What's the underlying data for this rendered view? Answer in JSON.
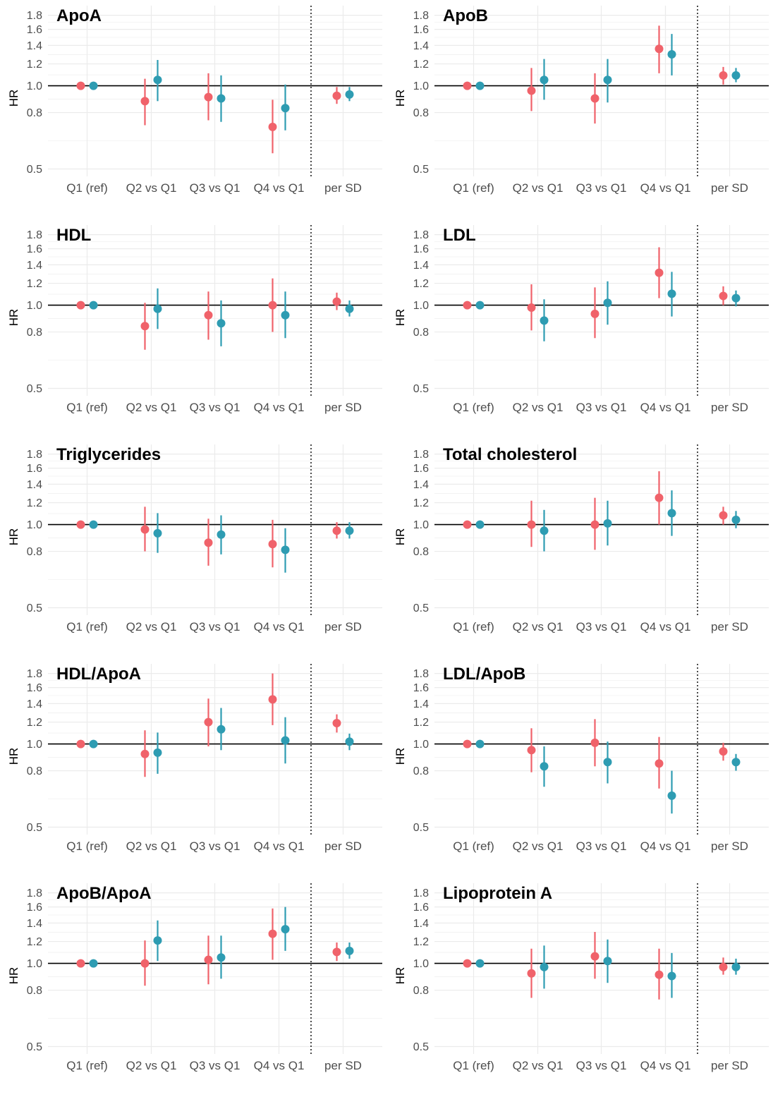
{
  "colors": {
    "group1": "#F0626A",
    "group2": "#2E9CB2",
    "gridline": "#EBEBEB",
    "refline": "#000000"
  },
  "chart_data": [
    {
      "type": "forest",
      "title": "ApoA",
      "ylabel": "HR",
      "yscale": "log",
      "ylim": [
        0.47,
        1.95
      ],
      "yticks": [
        "0.5",
        "0.8",
        "1.0",
        "1.2",
        "1.4",
        "1.6",
        "1.8"
      ],
      "categories": [
        "Q1 (ref)",
        "Q2 vs Q1",
        "Q3 vs Q1",
        "Q4 vs Q1",
        "per SD"
      ],
      "series": [
        {
          "color": "#F0626A",
          "hr": [
            1.0,
            0.88,
            0.91,
            0.71,
            0.92
          ],
          "lower": [
            1.0,
            0.72,
            0.75,
            0.57,
            0.86
          ],
          "upper": [
            1.0,
            1.06,
            1.11,
            0.89,
            0.99
          ]
        },
        {
          "color": "#2E9CB2",
          "hr": [
            1.0,
            1.05,
            0.9,
            0.83,
            0.93
          ],
          "lower": [
            1.0,
            0.88,
            0.74,
            0.69,
            0.88
          ],
          "upper": [
            1.0,
            1.24,
            1.09,
            1.01,
            0.99
          ]
        }
      ]
    },
    {
      "type": "forest",
      "title": "ApoB",
      "ylabel": "HR",
      "yscale": "log",
      "ylim": [
        0.47,
        1.95
      ],
      "yticks": [
        "0.5",
        "0.8",
        "1.0",
        "1.2",
        "1.4",
        "1.6",
        "1.8"
      ],
      "categories": [
        "Q1 (ref)",
        "Q2 vs Q1",
        "Q3 vs Q1",
        "Q4 vs Q1",
        "per SD"
      ],
      "series": [
        {
          "color": "#F0626A",
          "hr": [
            1.0,
            0.96,
            0.9,
            1.36,
            1.09
          ],
          "lower": [
            1.0,
            0.81,
            0.73,
            1.11,
            1.01
          ],
          "upper": [
            1.0,
            1.16,
            1.11,
            1.65,
            1.17
          ]
        },
        {
          "color": "#2E9CB2",
          "hr": [
            1.0,
            1.05,
            1.05,
            1.3,
            1.09
          ],
          "lower": [
            1.0,
            0.89,
            0.87,
            1.09,
            1.03
          ],
          "upper": [
            1.0,
            1.25,
            1.25,
            1.54,
            1.16
          ]
        }
      ]
    },
    {
      "type": "forest",
      "title": "HDL",
      "ylabel": "HR",
      "yscale": "log",
      "ylim": [
        0.47,
        1.95
      ],
      "yticks": [
        "0.5",
        "0.8",
        "1.0",
        "1.2",
        "1.4",
        "1.6",
        "1.8"
      ],
      "categories": [
        "Q1 (ref)",
        "Q2 vs Q1",
        "Q3 vs Q1",
        "Q4 vs Q1",
        "per SD"
      ],
      "series": [
        {
          "color": "#F0626A",
          "hr": [
            1.0,
            0.84,
            0.92,
            1.0,
            1.03
          ],
          "lower": [
            1.0,
            0.69,
            0.75,
            0.8,
            0.96
          ],
          "upper": [
            1.0,
            1.02,
            1.12,
            1.25,
            1.11
          ]
        },
        {
          "color": "#2E9CB2",
          "hr": [
            1.0,
            0.97,
            0.86,
            0.92,
            0.97
          ],
          "lower": [
            1.0,
            0.82,
            0.71,
            0.76,
            0.91
          ],
          "upper": [
            1.0,
            1.15,
            1.04,
            1.12,
            1.04
          ]
        }
      ]
    },
    {
      "type": "forest",
      "title": "LDL",
      "ylabel": "HR",
      "yscale": "log",
      "ylim": [
        0.47,
        1.95
      ],
      "yticks": [
        "0.5",
        "0.8",
        "1.0",
        "1.2",
        "1.4",
        "1.6",
        "1.8"
      ],
      "categories": [
        "Q1 (ref)",
        "Q2 vs Q1",
        "Q3 vs Q1",
        "Q4 vs Q1",
        "per SD"
      ],
      "series": [
        {
          "color": "#F0626A",
          "hr": [
            1.0,
            0.98,
            0.93,
            1.31,
            1.08
          ],
          "lower": [
            1.0,
            0.81,
            0.76,
            1.06,
            1.0
          ],
          "upper": [
            1.0,
            1.19,
            1.16,
            1.62,
            1.17
          ]
        },
        {
          "color": "#2E9CB2",
          "hr": [
            1.0,
            0.88,
            1.02,
            1.1,
            1.06
          ],
          "lower": [
            1.0,
            0.74,
            0.85,
            0.91,
            0.99
          ],
          "upper": [
            1.0,
            1.05,
            1.22,
            1.32,
            1.13
          ]
        }
      ]
    },
    {
      "type": "forest",
      "title": "Triglycerides",
      "ylabel": "HR",
      "yscale": "log",
      "ylim": [
        0.47,
        1.95
      ],
      "yticks": [
        "0.5",
        "0.8",
        "1.0",
        "1.2",
        "1.4",
        "1.6",
        "1.8"
      ],
      "categories": [
        "Q1 (ref)",
        "Q2 vs Q1",
        "Q3 vs Q1",
        "Q4 vs Q1",
        "per SD"
      ],
      "series": [
        {
          "color": "#F0626A",
          "hr": [
            1.0,
            0.96,
            0.86,
            0.85,
            0.95
          ],
          "lower": [
            1.0,
            0.8,
            0.71,
            0.7,
            0.89
          ],
          "upper": [
            1.0,
            1.16,
            1.05,
            1.04,
            1.02
          ]
        },
        {
          "color": "#2E9CB2",
          "hr": [
            1.0,
            0.93,
            0.92,
            0.81,
            0.95
          ],
          "lower": [
            1.0,
            0.79,
            0.78,
            0.67,
            0.89
          ],
          "upper": [
            1.0,
            1.1,
            1.08,
            0.97,
            1.02
          ]
        }
      ]
    },
    {
      "type": "forest",
      "title": "Total cholesterol",
      "ylabel": "HR",
      "yscale": "log",
      "ylim": [
        0.47,
        1.95
      ],
      "yticks": [
        "0.5",
        "0.8",
        "1.0",
        "1.2",
        "1.4",
        "1.6",
        "1.8"
      ],
      "categories": [
        "Q1 (ref)",
        "Q2 vs Q1",
        "Q3 vs Q1",
        "Q4 vs Q1",
        "per SD"
      ],
      "series": [
        {
          "color": "#F0626A",
          "hr": [
            1.0,
            1.0,
            1.0,
            1.25,
            1.08
          ],
          "lower": [
            1.0,
            0.83,
            0.81,
            1.0,
            1.0
          ],
          "upper": [
            1.0,
            1.22,
            1.25,
            1.56,
            1.16
          ]
        },
        {
          "color": "#2E9CB2",
          "hr": [
            1.0,
            0.95,
            1.01,
            1.1,
            1.04
          ],
          "lower": [
            1.0,
            0.8,
            0.84,
            0.91,
            0.97
          ],
          "upper": [
            1.0,
            1.13,
            1.22,
            1.33,
            1.12
          ]
        }
      ]
    },
    {
      "type": "forest",
      "title": "HDL/ApoA",
      "ylabel": "HR",
      "yscale": "log",
      "ylim": [
        0.47,
        1.95
      ],
      "yticks": [
        "0.5",
        "0.8",
        "1.0",
        "1.2",
        "1.4",
        "1.6",
        "1.8"
      ],
      "categories": [
        "Q1 (ref)",
        "Q2 vs Q1",
        "Q3 vs Q1",
        "Q4 vs Q1",
        "per SD"
      ],
      "series": [
        {
          "color": "#F0626A",
          "hr": [
            1.0,
            0.92,
            1.2,
            1.45,
            1.19
          ],
          "lower": [
            1.0,
            0.76,
            0.98,
            1.17,
            1.1
          ],
          "upper": [
            1.0,
            1.12,
            1.46,
            1.8,
            1.28
          ]
        },
        {
          "color": "#2E9CB2",
          "hr": [
            1.0,
            0.93,
            1.13,
            1.03,
            1.02
          ],
          "lower": [
            1.0,
            0.78,
            0.95,
            0.85,
            0.95
          ],
          "upper": [
            1.0,
            1.1,
            1.35,
            1.25,
            1.09
          ]
        }
      ]
    },
    {
      "type": "forest",
      "title": "LDL/ApoB",
      "ylabel": "HR",
      "yscale": "log",
      "ylim": [
        0.47,
        1.95
      ],
      "yticks": [
        "0.5",
        "0.8",
        "1.0",
        "1.2",
        "1.4",
        "1.6",
        "1.8"
      ],
      "categories": [
        "Q1 (ref)",
        "Q2 vs Q1",
        "Q3 vs Q1",
        "Q4 vs Q1",
        "per SD"
      ],
      "series": [
        {
          "color": "#F0626A",
          "hr": [
            1.0,
            0.95,
            1.01,
            0.85,
            0.94
          ],
          "lower": [
            1.0,
            0.79,
            0.83,
            0.69,
            0.87
          ],
          "upper": [
            1.0,
            1.14,
            1.23,
            1.06,
            1.01
          ]
        },
        {
          "color": "#2E9CB2",
          "hr": [
            1.0,
            0.83,
            0.86,
            0.65,
            0.86
          ],
          "lower": [
            1.0,
            0.7,
            0.72,
            0.56,
            0.8
          ],
          "upper": [
            1.0,
            0.98,
            1.02,
            0.8,
            0.92
          ]
        }
      ]
    },
    {
      "type": "forest",
      "title": "ApoB/ApoA",
      "ylabel": "HR",
      "yscale": "log",
      "ylim": [
        0.47,
        1.95
      ],
      "yticks": [
        "0.5",
        "0.8",
        "1.0",
        "1.2",
        "1.4",
        "1.6",
        "1.8"
      ],
      "categories": [
        "Q1 (ref)",
        "Q2 vs Q1",
        "Q3 vs Q1",
        "Q4 vs Q1",
        "per SD"
      ],
      "series": [
        {
          "color": "#F0626A",
          "hr": [
            1.0,
            1.0,
            1.03,
            1.28,
            1.1
          ],
          "lower": [
            1.0,
            0.83,
            0.84,
            1.03,
            1.02
          ],
          "upper": [
            1.0,
            1.21,
            1.26,
            1.58,
            1.19
          ]
        },
        {
          "color": "#2E9CB2",
          "hr": [
            1.0,
            1.21,
            1.05,
            1.33,
            1.11
          ],
          "lower": [
            1.0,
            1.02,
            0.88,
            1.11,
            1.04
          ],
          "upper": [
            1.0,
            1.43,
            1.26,
            1.6,
            1.19
          ]
        }
      ]
    },
    {
      "type": "forest",
      "title": "Lipoprotein A",
      "ylabel": "HR",
      "yscale": "log",
      "ylim": [
        0.47,
        1.95
      ],
      "yticks": [
        "0.5",
        "0.8",
        "1.0",
        "1.2",
        "1.4",
        "1.6",
        "1.8"
      ],
      "categories": [
        "Q1 (ref)",
        "Q2 vs Q1",
        "Q3 vs Q1",
        "Q4 vs Q1",
        "per SD"
      ],
      "series": [
        {
          "color": "#F0626A",
          "hr": [
            1.0,
            0.92,
            1.06,
            0.91,
            0.97
          ],
          "lower": [
            1.0,
            0.75,
            0.88,
            0.74,
            0.91
          ],
          "upper": [
            1.0,
            1.13,
            1.3,
            1.13,
            1.05
          ]
        },
        {
          "color": "#2E9CB2",
          "hr": [
            1.0,
            0.97,
            1.02,
            0.9,
            0.97
          ],
          "lower": [
            1.0,
            0.81,
            0.85,
            0.75,
            0.91
          ],
          "upper": [
            1.0,
            1.16,
            1.22,
            1.09,
            1.04
          ]
        }
      ]
    }
  ]
}
